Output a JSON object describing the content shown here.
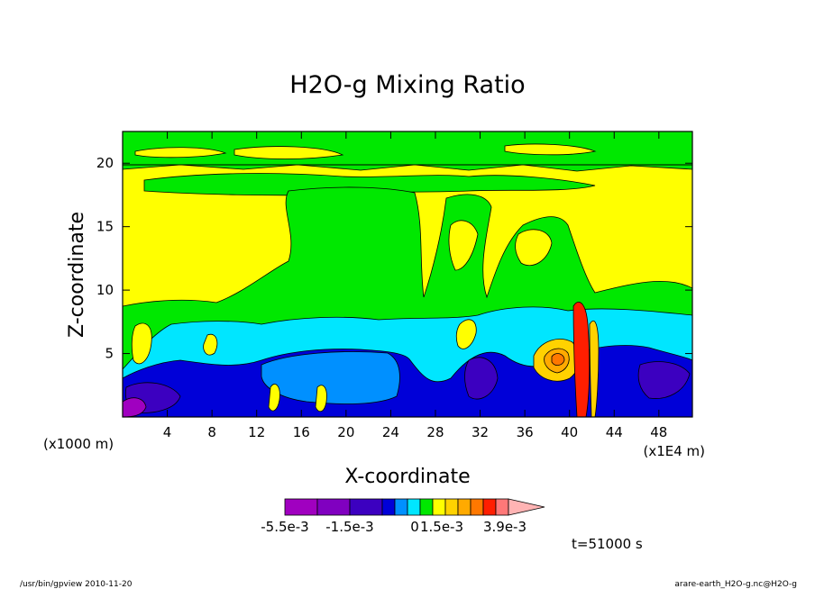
{
  "chart_data": {
    "type": "heatmap",
    "title": "H2O-g Mixing Ratio",
    "xlabel": "X-coordinate",
    "ylabel": "Z-coordinate",
    "x_unit_left": "(x1000 m)",
    "x_unit_right": "(x1E4 m)",
    "xlim": [
      0,
      51
    ],
    "ylim": [
      0,
      22.5
    ],
    "x_ticks": [
      4,
      8,
      12,
      16,
      20,
      24,
      28,
      32,
      36,
      40,
      44,
      48
    ],
    "y_ticks": [
      5,
      10,
      15,
      20
    ],
    "grid": false,
    "colorbar": {
      "orientation": "horizontal",
      "colors": [
        "#a000c0",
        "#8000c0",
        "#3c00c0",
        "#0000d8",
        "#0090ff",
        "#00e6ff",
        "#00e800",
        "#ffff00",
        "#ffd200",
        "#ffaa00",
        "#ff7800",
        "#ff1e00",
        "#ff7878",
        "#ffb4b4"
      ],
      "tick_labels": [
        "-5.5e-3",
        "-1.5e-3",
        "0",
        "1.5e-3",
        "3.9e-3"
      ]
    },
    "time_label": "t=51000 s"
  },
  "footer": {
    "left": "/usr/bin/gpview  2010-11-20",
    "right": "arare-earth_H2O-g.nc@H2O-g"
  },
  "colors": {
    "yellow": "#ffff00",
    "green": "#00e800",
    "cyan": "#00e6ff",
    "blue": "#0000d8",
    "navy": "#3c00c0",
    "violet": "#a000c0",
    "orange": "#ffaa00",
    "red": "#ff1e00"
  }
}
